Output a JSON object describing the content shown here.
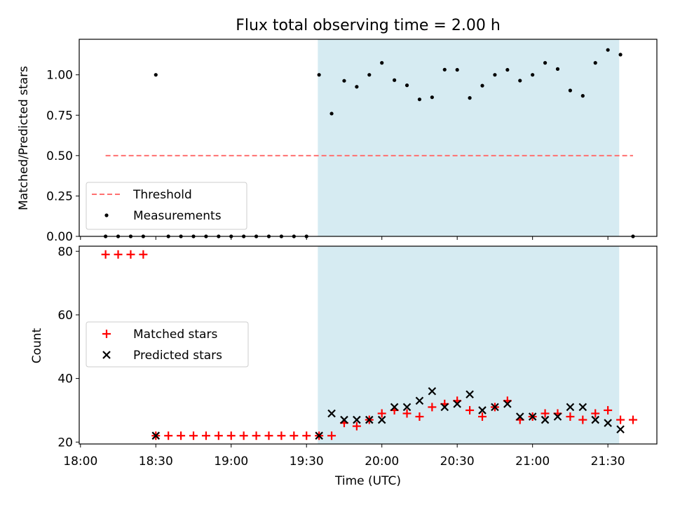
{
  "chart_data": {
    "type": "scatter",
    "title": "Flux total observing time = 2.00 h",
    "xlabel": "Time (UTC)",
    "x_ticks": [
      {
        "label": "18:00",
        "t": 0
      },
      {
        "label": "18:30",
        "t": 30
      },
      {
        "label": "19:00",
        "t": 60
      },
      {
        "label": "19:30",
        "t": 90
      },
      {
        "label": "20:00",
        "t": 120
      },
      {
        "label": "20:30",
        "t": 150
      },
      {
        "label": "21:00",
        "t": 180
      },
      {
        "label": "21:30",
        "t": 210
      }
    ],
    "xlim_minutes_after_1800": [
      -0.5,
      229.5
    ],
    "observing_window_minutes_after_1800": [
      94.5,
      214.5
    ],
    "observing_window_color": "#add8e6",
    "panels": [
      {
        "ylabel": "Matched/Predicted stars",
        "ylim": [
          0,
          1.22
        ],
        "y_ticks": [
          "0.00",
          "0.25",
          "0.50",
          "0.75",
          "1.00"
        ],
        "y_tick_values": [
          0,
          0.25,
          0.5,
          0.75,
          1.0
        ],
        "legend_location": "lower-left",
        "series": [
          {
            "name": "Threshold",
            "kind": "dashed-line",
            "color": "#ff7070",
            "value": 0.5,
            "x_range": [
              10,
              220
            ]
          },
          {
            "name": "Measurements",
            "kind": "points",
            "marker": "dot",
            "color": "#000000",
            "x": [
              10,
              15,
              20,
              25,
              30,
              35,
              40,
              45,
              50,
              55,
              60,
              65,
              70,
              75,
              80,
              85,
              90,
              95,
              100,
              105,
              110,
              115,
              120,
              125,
              130,
              135,
              140,
              145,
              150,
              155,
              160,
              165,
              170,
              175,
              180,
              185,
              190,
              195,
              200,
              205,
              210,
              215,
              220
            ],
            "y": [
              0,
              0,
              0,
              0,
              1.0,
              0,
              0,
              0,
              0,
              0,
              0,
              0,
              0,
              0,
              0,
              0,
              0,
              1.0,
              0.76,
              0.963,
              0.926,
              1.0,
              1.074,
              0.967,
              0.935,
              0.848,
              0.861,
              1.032,
              1.031,
              0.857,
              0.933,
              1.0,
              1.031,
              0.964,
              1.0,
              1.074,
              1.036,
              0.903,
              0.87,
              1.074,
              1.154,
              1.125,
              0
            ]
          }
        ]
      },
      {
        "ylabel": "Count",
        "ylim": [
          19.4,
          81.6
        ],
        "y_ticks": [
          "20",
          "40",
          "60",
          "80"
        ],
        "y_tick_values": [
          20,
          40,
          60,
          80
        ],
        "legend_location": "center-left",
        "series": [
          {
            "name": "Matched stars",
            "marker": "plus",
            "color": "#ff0000",
            "x": [
              10,
              15,
              20,
              25,
              30,
              35,
              40,
              45,
              50,
              55,
              60,
              65,
              70,
              75,
              80,
              85,
              90,
              95,
              100,
              105,
              110,
              115,
              120,
              125,
              130,
              135,
              140,
              145,
              150,
              155,
              160,
              165,
              170,
              175,
              180,
              185,
              190,
              195,
              200,
              205,
              210,
              215,
              220
            ],
            "y": [
              79,
              79,
              79,
              79,
              22,
              22,
              22,
              22,
              22,
              22,
              22,
              22,
              22,
              22,
              22,
              22,
              22,
              22,
              22,
              26,
              25,
              27,
              29,
              30,
              29,
              28,
              31,
              32,
              33,
              30,
              28,
              31,
              33,
              27,
              28,
              29,
              29,
              28,
              27,
              29,
              30,
              27,
              27
            ]
          },
          {
            "name": "Predicted stars",
            "marker": "x",
            "color": "#000000",
            "x": [
              30,
              95,
              100,
              105,
              110,
              115,
              120,
              125,
              130,
              135,
              140,
              145,
              150,
              155,
              160,
              165,
              170,
              175,
              180,
              185,
              190,
              195,
              200,
              205,
              210,
              215
            ],
            "y": [
              22,
              22,
              29,
              27,
              27,
              27,
              27,
              31,
              31,
              33,
              36,
              31,
              32,
              35,
              30,
              31,
              32,
              28,
              28,
              27,
              28,
              31,
              31,
              27,
              26,
              24
            ]
          }
        ]
      }
    ]
  }
}
